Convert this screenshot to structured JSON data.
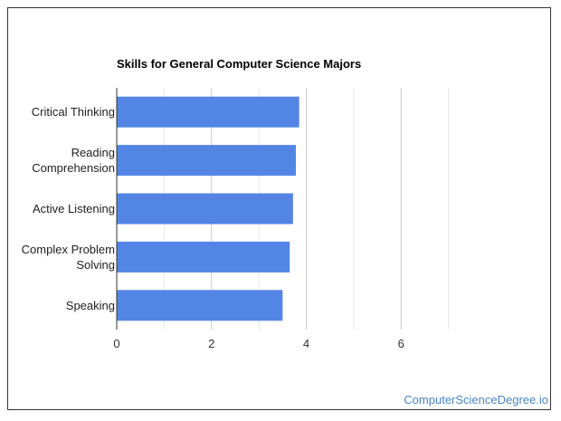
{
  "chart_data": {
    "type": "bar",
    "orientation": "horizontal",
    "title": "Skills for General Computer Science Majors",
    "xlabel": "",
    "ylabel": "",
    "categories": [
      [
        "Critical Thinking"
      ],
      [
        "Reading",
        "Comprehension"
      ],
      [
        "Active Listening"
      ],
      [
        "Complex Problem",
        "Solving"
      ],
      [
        "Speaking"
      ]
    ],
    "values": [
      3.85,
      3.78,
      3.72,
      3.65,
      3.5
    ],
    "xlim": [
      0,
      8
    ],
    "major_ticks": [
      0,
      2,
      4,
      6
    ],
    "grid": true,
    "legend": "none",
    "bar_color": "#5385e4"
  },
  "credit": "ComputerScienceDegree.io",
  "colors": {
    "credit": "#4a86c8",
    "gridline": "#cccccc",
    "minor_gridline": "#e8e8e8",
    "axis": "#333333"
  }
}
